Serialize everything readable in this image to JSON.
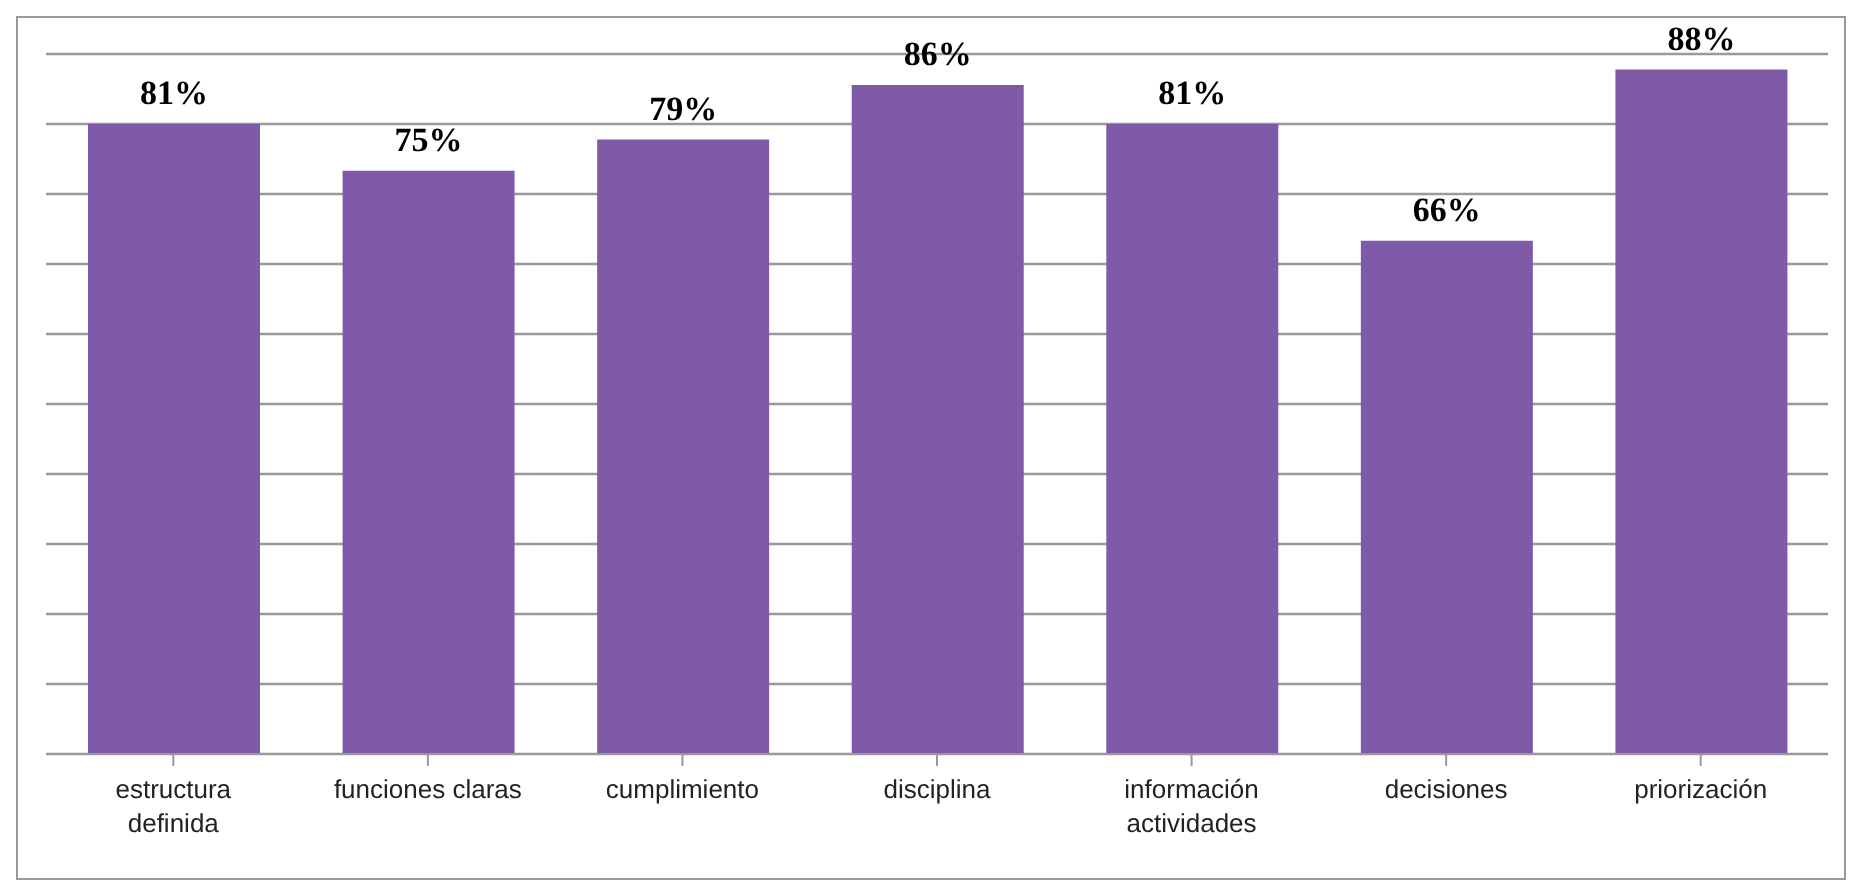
{
  "chart_data": {
    "type": "bar",
    "categories": [
      "estructura definida",
      "funciones claras",
      "cumplimiento",
      "disciplina",
      "información actividades",
      "decisiones",
      "priorización"
    ],
    "values": [
      81,
      75,
      79,
      86,
      81,
      66,
      88
    ],
    "value_labels": [
      "81%",
      "75%",
      "79%",
      "86%",
      "81%",
      "66%",
      "88%"
    ],
    "color": "#7f5aa8",
    "grid": "y"
  }
}
